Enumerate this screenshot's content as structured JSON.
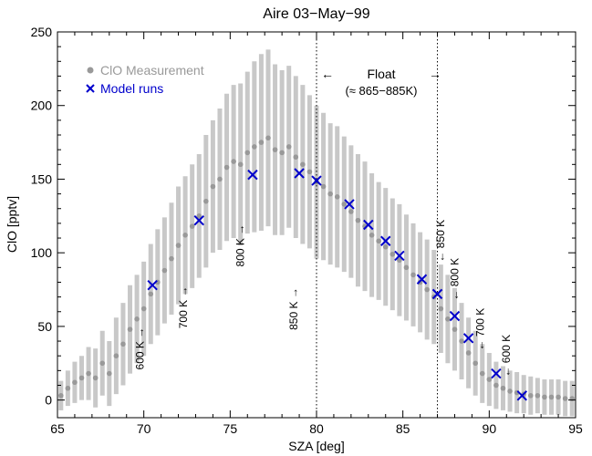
{
  "chart_data": {
    "type": "scatter",
    "title": "Aire 03−May−99",
    "xlabel": "SZA [deg]",
    "ylabel": "ClO [pptv]",
    "xlim": [
      65,
      95
    ],
    "ylim": [
      -12,
      250
    ],
    "xticks": [
      65,
      70,
      75,
      80,
      85,
      90,
      95
    ],
    "yticks": [
      0,
      50,
      100,
      150,
      200,
      250
    ],
    "xtick_labels": [
      "65",
      "70",
      "75",
      "80",
      "85",
      "90",
      "95"
    ],
    "ytick_labels": [
      "0",
      "50",
      "100",
      "150",
      "200",
      "250"
    ],
    "legend_position": "top-left",
    "series": [
      {
        "name": "ClO Measurement",
        "marker": "dot",
        "color": "#999999",
        "errorbar_color": "#c8c8c8",
        "x": [
          65.2,
          65.6,
          66.0,
          66.4,
          66.8,
          67.2,
          67.6,
          68.0,
          68.4,
          68.8,
          69.2,
          69.6,
          70.0,
          70.4,
          70.8,
          71.2,
          71.6,
          72.0,
          72.4,
          72.8,
          73.2,
          73.6,
          74.0,
          74.4,
          74.8,
          75.2,
          75.6,
          76.0,
          76.4,
          76.8,
          77.2,
          77.6,
          78.0,
          78.4,
          78.8,
          79.2,
          79.6,
          80.0,
          80.4,
          80.8,
          81.2,
          81.6,
          82.0,
          82.4,
          82.8,
          83.2,
          83.6,
          84.0,
          84.4,
          84.8,
          85.2,
          85.6,
          86.0,
          86.4,
          86.8,
          87.2,
          87.6,
          88.0,
          88.4,
          88.8,
          89.2,
          89.6,
          90.0,
          90.4,
          90.8,
          91.2,
          91.6,
          92.0,
          92.4,
          92.8,
          93.2,
          93.6,
          94.0,
          94.4,
          94.8
        ],
        "y": [
          3,
          8,
          12,
          15,
          18,
          15,
          25,
          18,
          30,
          38,
          48,
          55,
          62,
          72,
          80,
          88,
          96,
          105,
          112,
          118,
          125,
          135,
          145,
          150,
          158,
          162,
          160,
          168,
          172,
          175,
          178,
          170,
          168,
          172,
          165,
          160,
          155,
          148,
          145,
          140,
          138,
          133,
          128,
          122,
          118,
          112,
          108,
          104,
          99,
          95,
          90,
          85,
          80,
          75,
          70,
          62,
          55,
          48,
          40,
          32,
          25,
          18,
          14,
          10,
          8,
          6,
          5,
          4,
          3,
          3,
          2,
          2,
          2,
          1,
          1
        ],
        "err": [
          10,
          12,
          14,
          15,
          18,
          20,
          22,
          22,
          26,
          28,
          30,
          30,
          32,
          34,
          36,
          36,
          38,
          40,
          40,
          42,
          42,
          45,
          45,
          48,
          50,
          52,
          55,
          55,
          58,
          60,
          60,
          58,
          56,
          55,
          55,
          54,
          52,
          52,
          50,
          48,
          48,
          46,
          45,
          45,
          44,
          42,
          40,
          40,
          38,
          38,
          36,
          35,
          34,
          34,
          32,
          30,
          30,
          28,
          26,
          24,
          22,
          20,
          18,
          16,
          15,
          14,
          14,
          13,
          13,
          12,
          12,
          12,
          12,
          12,
          12
        ]
      },
      {
        "name": "Model runs",
        "marker": "x",
        "color": "#0000cc",
        "x": [
          70.5,
          73.2,
          76.3,
          79.0,
          80.0,
          81.9,
          83.0,
          84.0,
          84.8,
          86.1,
          87.0,
          88.0,
          88.8,
          90.4,
          91.9
        ],
        "y": [
          78,
          122,
          153,
          154,
          149,
          133,
          119,
          108,
          98,
          82,
          72,
          57,
          42,
          18,
          3
        ]
      }
    ],
    "vlines": [
      80,
      87
    ],
    "annotations": {
      "float_label": "Float",
      "float_range": "(≈ 865−885K)",
      "altitude_labels": [
        {
          "text": "600 K →",
          "x": 70.0,
          "y": 35
        },
        {
          "text": "700 K →",
          "x": 72.5,
          "y": 63
        },
        {
          "text": "800 K →",
          "x": 75.8,
          "y": 105
        },
        {
          "text": "850 K →",
          "x": 78.9,
          "y": 62
        },
        {
          "text": "← 850 K",
          "x": 87.4,
          "y": 108
        },
        {
          "text": "← 800 K",
          "x": 88.2,
          "y": 82
        },
        {
          "text": "← 700 K",
          "x": 89.7,
          "y": 48
        },
        {
          "text": "← 600 K",
          "x": 91.2,
          "y": 30
        }
      ]
    }
  }
}
